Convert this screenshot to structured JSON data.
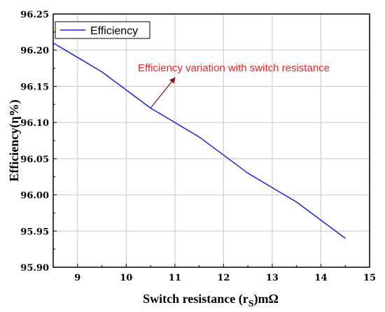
{
  "chart_data": {
    "type": "line",
    "xlabel": "Switch resistance (r",
    "xlabel_sub": "S",
    "xlabel_unit": ")mΩ",
    "ylabel": "Efficiency(η%)",
    "xlim": [
      8.5,
      15
    ],
    "ylim": [
      95.9,
      96.25
    ],
    "x_ticks": [
      9,
      10,
      11,
      12,
      13,
      14,
      15
    ],
    "y_ticks": [
      95.9,
      95.95,
      96.0,
      96.05,
      96.1,
      96.15,
      96.2,
      96.25
    ],
    "x_tick_labels": [
      "9",
      "10",
      "11",
      "12",
      "13",
      "14",
      "15"
    ],
    "y_tick_labels": [
      "95.90",
      "95.95",
      "96.00",
      "96.05",
      "96.10",
      "96.15",
      "96.20",
      "96.25"
    ],
    "grid": true,
    "legend_position": "top-left",
    "series": [
      {
        "name": "Efficiency",
        "color": "#1f1fe0",
        "x": [
          8.5,
          9,
          9.5,
          10,
          10.5,
          11,
          11.5,
          12,
          12.5,
          13,
          13.5,
          14,
          14.5
        ],
        "y": [
          96.21,
          96.19,
          96.17,
          96.145,
          96.12,
          96.1,
          96.08,
          96.055,
          96.03,
          96.01,
          95.99,
          95.965,
          95.94
        ]
      }
    ],
    "annotation": {
      "text": "Efficiency variation with switch resistance",
      "color": "#e8262a",
      "arrow_to": {
        "x": 10.5,
        "y": 96.12
      }
    }
  }
}
